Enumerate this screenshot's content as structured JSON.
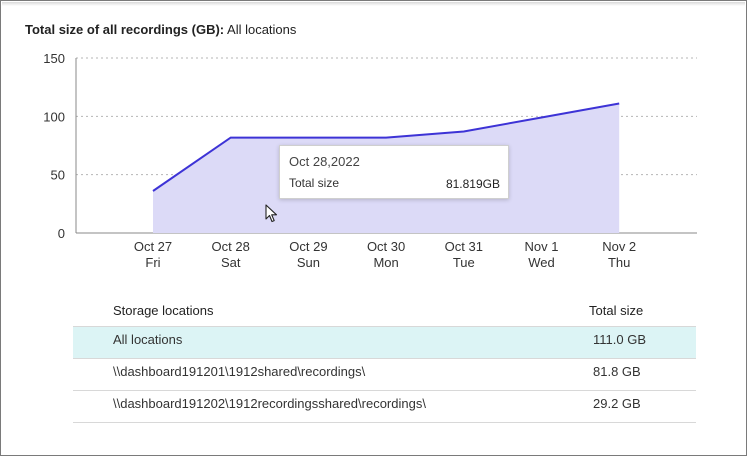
{
  "header": {
    "title_bold": "Total size of all recordings (GB):",
    "title_rest": " All locations"
  },
  "chart_data": {
    "type": "area",
    "categories": [
      "Oct 27",
      "Oct 28",
      "Oct 29",
      "Oct 30",
      "Oct 31",
      "Nov 1",
      "Nov 2"
    ],
    "weekdays": [
      "Fri",
      "Sat",
      "Sun",
      "Mon",
      "Tue",
      "Wed",
      "Thu"
    ],
    "series": [
      {
        "values": [
          36,
          81.8,
          81.8,
          81.8,
          87,
          99,
          111
        ]
      }
    ],
    "ylim": [
      0,
      150
    ],
    "yticks": [
      0,
      50,
      100,
      150
    ],
    "grid": true,
    "line_color": "#3d33d6",
    "fill_color": "#dcdaf7"
  },
  "tooltip": {
    "date": "Oct 28,2022",
    "label": "Total size",
    "value": "81.819GB"
  },
  "table": {
    "headers": {
      "location": "Storage locations",
      "size": "Total size"
    },
    "rows": [
      {
        "location": "All locations",
        "size": "111.0 GB",
        "selected": true
      },
      {
        "location": "\\\\dashboard191201\\1912shared\\recordings\\",
        "size": "81.8 GB",
        "selected": false
      },
      {
        "location": "\\\\dashboard191202\\1912recordingsshared\\recordings\\",
        "size": "29.2 GB",
        "selected": false
      }
    ]
  },
  "colors": {
    "selected_row": "#dcf4f5",
    "accent": "#3d33d6"
  }
}
